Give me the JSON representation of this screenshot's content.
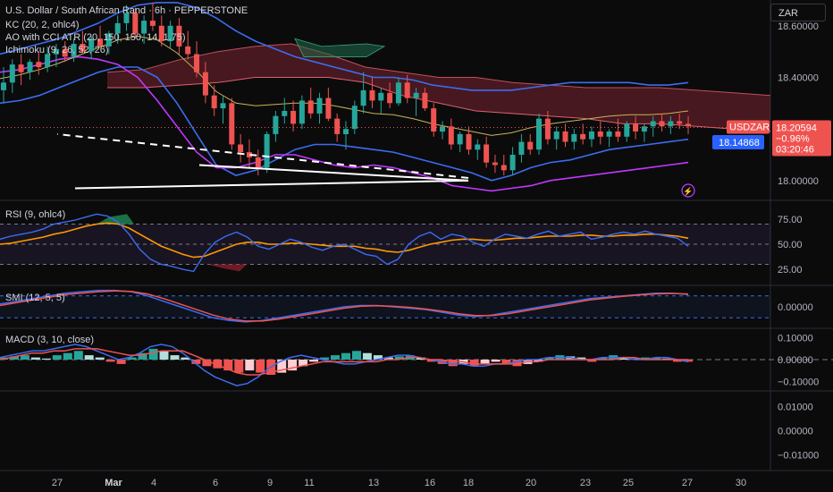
{
  "header": {
    "title": "U.S. Dollar / South African Rand · 6h · PEPPERSTONE",
    "currency_button": "ZAR"
  },
  "indicators": {
    "kc": "KC (20, 2, ohlc4)",
    "ao_cci": "AO with CCI ATR (20, 150, 150, 14, 1.75)",
    "ichimoku": "Ichimoku (9, 26, 52, 26)",
    "rsi": "RSI (9, ohlc4)",
    "smi": "SMI (12, 5, 5)",
    "macd": "MACD (3, 10, close)"
  },
  "price_tags": {
    "symbol": "USDZAR",
    "last": "18.20594",
    "change": "−0.96%",
    "countdown": "03:20:46",
    "blue": "18.14868"
  },
  "colors": {
    "up": "#26a69a",
    "down": "#ef5350",
    "kc": "#3b6df0",
    "ichimoku_cloud": "#7a2530",
    "rsi": "#ff9800",
    "magenta": "#c038ff",
    "bg": "#0b0b0c"
  },
  "chart_data": [
    {
      "type": "candlestick",
      "title": "U.S. Dollar / South African Rand · 6h · PEPPERSTONE",
      "ylim": [
        17.93,
        18.7
      ],
      "y_ticks": [
        "18.60000",
        "18.40000",
        "18.20000",
        "18.00000"
      ],
      "x_ticks": [
        "27",
        "Mar",
        "4",
        "6",
        "9",
        "11",
        "13",
        "16",
        "18",
        "20",
        "23",
        "25",
        "27",
        "30"
      ],
      "last_price": 18.20594,
      "blue_price": 18.14868,
      "grid": false,
      "candles": [
        [
          18.35,
          18.44,
          18.3,
          18.38
        ],
        [
          18.38,
          18.47,
          18.34,
          18.45
        ],
        [
          18.45,
          18.49,
          18.37,
          18.42
        ],
        [
          18.42,
          18.47,
          18.39,
          18.46
        ],
        [
          18.46,
          18.5,
          18.41,
          18.44
        ],
        [
          18.44,
          18.52,
          18.42,
          18.49
        ],
        [
          18.49,
          18.53,
          18.44,
          18.51
        ],
        [
          18.51,
          18.54,
          18.46,
          18.48
        ],
        [
          18.48,
          18.55,
          18.46,
          18.53
        ],
        [
          18.53,
          18.58,
          18.49,
          18.5
        ],
        [
          18.5,
          18.56,
          18.47,
          18.55
        ],
        [
          18.55,
          18.6,
          18.52,
          18.52
        ],
        [
          18.52,
          18.58,
          18.49,
          18.57
        ],
        [
          18.57,
          18.64,
          18.53,
          18.61
        ],
        [
          18.61,
          18.68,
          18.58,
          18.65
        ],
        [
          18.65,
          18.67,
          18.55,
          18.57
        ],
        [
          18.57,
          18.64,
          18.53,
          18.62
        ],
        [
          18.62,
          18.69,
          18.58,
          18.6
        ],
        [
          18.6,
          18.64,
          18.52,
          18.54
        ],
        [
          18.54,
          18.62,
          18.51,
          18.6
        ],
        [
          18.6,
          18.63,
          18.49,
          18.52
        ],
        [
          18.52,
          18.58,
          18.47,
          18.49
        ],
        [
          18.49,
          18.54,
          18.4,
          18.42
        ],
        [
          18.42,
          18.46,
          18.3,
          18.33
        ],
        [
          18.33,
          18.37,
          18.25,
          18.28
        ],
        [
          18.28,
          18.33,
          18.22,
          18.3
        ],
        [
          18.3,
          18.32,
          18.12,
          18.14
        ],
        [
          18.14,
          18.18,
          18.07,
          18.11
        ],
        [
          18.11,
          18.16,
          18.05,
          18.09
        ],
        [
          18.09,
          18.12,
          18.02,
          18.05
        ],
        [
          18.05,
          18.19,
          18.03,
          18.18
        ],
        [
          18.18,
          18.27,
          18.15,
          18.25
        ],
        [
          18.25,
          18.32,
          18.22,
          18.27
        ],
        [
          18.27,
          18.31,
          18.19,
          18.22
        ],
        [
          18.22,
          18.33,
          18.2,
          18.31
        ],
        [
          18.31,
          18.36,
          18.24,
          18.26
        ],
        [
          18.26,
          18.34,
          18.22,
          18.32
        ],
        [
          18.32,
          18.36,
          18.23,
          18.24
        ],
        [
          18.24,
          18.26,
          18.15,
          18.18
        ],
        [
          18.18,
          18.23,
          18.12,
          18.2
        ],
        [
          18.2,
          18.31,
          18.18,
          18.29
        ],
        [
          18.29,
          18.42,
          18.26,
          18.35
        ],
        [
          18.35,
          18.4,
          18.28,
          18.31
        ],
        [
          18.31,
          18.36,
          18.26,
          18.34
        ],
        [
          18.34,
          18.38,
          18.28,
          18.3
        ],
        [
          18.3,
          18.4,
          18.29,
          18.38
        ],
        [
          18.38,
          18.41,
          18.3,
          18.32
        ],
        [
          18.32,
          18.36,
          18.25,
          18.34
        ],
        [
          18.34,
          18.36,
          18.27,
          18.28
        ],
        [
          18.28,
          18.3,
          18.17,
          18.19
        ],
        [
          18.19,
          18.23,
          18.16,
          18.21
        ],
        [
          18.21,
          18.24,
          18.12,
          18.14
        ],
        [
          18.14,
          18.19,
          18.11,
          18.18
        ],
        [
          18.18,
          18.21,
          18.1,
          18.12
        ],
        [
          18.12,
          18.16,
          18.08,
          18.14
        ],
        [
          18.14,
          18.17,
          18.05,
          18.07
        ],
        [
          18.07,
          18.1,
          18.03,
          18.06
        ],
        [
          18.06,
          18.1,
          18.02,
          18.04
        ],
        [
          18.04,
          18.13,
          18.02,
          18.1
        ],
        [
          18.1,
          18.18,
          18.07,
          18.15
        ],
        [
          18.15,
          18.18,
          18.1,
          18.12
        ],
        [
          18.12,
          18.26,
          18.1,
          18.24
        ],
        [
          18.24,
          18.27,
          18.14,
          18.16
        ],
        [
          18.16,
          18.21,
          18.12,
          18.19
        ],
        [
          18.19,
          18.22,
          18.13,
          18.15
        ],
        [
          18.15,
          18.2,
          18.12,
          18.18
        ],
        [
          18.18,
          18.22,
          18.14,
          18.16
        ],
        [
          18.16,
          18.21,
          18.13,
          18.19
        ],
        [
          18.19,
          18.23,
          18.14,
          18.17
        ],
        [
          18.17,
          18.2,
          18.13,
          18.19
        ],
        [
          18.19,
          18.24,
          18.15,
          18.17
        ],
        [
          18.17,
          18.23,
          18.15,
          18.22
        ],
        [
          18.22,
          18.25,
          18.16,
          18.19
        ],
        [
          18.19,
          18.22,
          18.15,
          18.21
        ],
        [
          18.21,
          18.25,
          18.17,
          18.23
        ],
        [
          18.23,
          18.26,
          18.19,
          18.21
        ],
        [
          18.21,
          18.25,
          18.18,
          18.23
        ],
        [
          18.23,
          18.26,
          18.2,
          18.22
        ],
        [
          18.22,
          18.25,
          18.18,
          18.21
        ]
      ],
      "kc_upper": [
        18.49,
        18.51,
        18.53,
        18.55,
        18.58,
        18.61,
        18.65,
        18.68,
        18.69,
        18.69,
        18.67,
        18.63,
        18.58,
        18.54,
        18.51,
        18.48,
        18.46,
        18.44,
        18.42,
        18.4,
        18.4,
        18.39,
        18.37,
        18.36,
        18.35,
        18.35,
        18.35,
        18.36,
        18.37,
        18.38,
        18.38,
        18.38,
        18.38,
        18.37,
        18.37,
        18.38
      ],
      "kc_lower": [
        18.3,
        18.31,
        18.33,
        18.36,
        18.39,
        18.42,
        18.44,
        18.44,
        18.4,
        18.3,
        18.18,
        18.06,
        18.02,
        18.04,
        18.08,
        18.12,
        18.14,
        18.14,
        18.13,
        18.12,
        18.11,
        18.09,
        18.07,
        18.05,
        18.03,
        18.0,
        18.02,
        18.05,
        18.07,
        18.08,
        18.1,
        18.12,
        18.13,
        18.14,
        18.15,
        18.16
      ],
      "magenta": [
        18.42,
        18.43,
        18.45,
        18.47,
        18.48,
        18.47,
        18.45,
        18.4,
        18.31,
        18.21,
        18.11,
        18.05,
        18.05,
        18.07,
        18.1,
        18.1,
        18.08,
        18.06,
        18.05,
        18.06,
        18.05,
        18.03,
        18.01,
        17.98,
        17.97,
        17.96,
        17.97,
        17.98,
        18.0,
        18.01,
        18.02,
        18.03,
        18.04,
        18.05,
        18.06,
        18.07
      ],
      "trendlines": [
        {
          "from": [
            "6",
            18.06
          ],
          "to": [
            "18",
            18.0
          ],
          "style": "solid"
        },
        {
          "from": [
            "18",
            18.0
          ],
          "to": [
            "27",
            17.97
          ],
          "style": "solid"
        },
        {
          "from": [
            "18",
            18.01
          ],
          "to": [
            "27",
            18.18
          ],
          "style": "dashed"
        }
      ]
    },
    {
      "type": "line",
      "title": "RSI (9, ohlc4)",
      "y_ticks": [
        "75.00",
        "50.00",
        "25.00"
      ],
      "ylim": [
        10,
        90
      ],
      "series": [
        {
          "name": "RSI",
          "values": [
            55,
            58,
            60,
            62,
            65,
            70,
            72,
            74,
            77,
            80,
            78,
            72,
            60,
            45,
            35,
            30,
            28,
            25,
            23,
            40,
            52,
            58,
            62,
            57,
            48,
            45,
            50,
            55,
            52,
            47,
            44,
            48,
            50,
            45,
            40,
            38,
            30,
            35,
            50,
            58,
            62,
            55,
            60,
            58,
            52,
            48,
            55,
            60,
            58,
            56,
            60,
            63,
            58,
            60,
            62,
            55,
            57,
            60,
            62,
            60,
            63,
            60,
            58,
            56,
            48
          ]
        },
        {
          "name": "Signal",
          "values": [
            50,
            51,
            53,
            55,
            57,
            60,
            62,
            65,
            68,
            70,
            71,
            70,
            66,
            60,
            54,
            48,
            44,
            40,
            37,
            38,
            42,
            46,
            50,
            52,
            52,
            50,
            50,
            51,
            51,
            50,
            49,
            48,
            48,
            48,
            46,
            45,
            43,
            42,
            44,
            47,
            50,
            52,
            54,
            55,
            55,
            54,
            54,
            55,
            56,
            56,
            57,
            58,
            58,
            58,
            59,
            59,
            58,
            58,
            59,
            59,
            60,
            60,
            59,
            58,
            56
          ]
        }
      ]
    },
    {
      "type": "line",
      "title": "SMI (12, 5, 5)",
      "y_ticks": [
        "0.00000"
      ],
      "series": [
        {
          "name": "SMI",
          "values": [
            0.1,
            0.2,
            0.3,
            0.4,
            0.5,
            0.55,
            0.6,
            0.6,
            0.55,
            0.4,
            0.2,
            0.0,
            -0.2,
            -0.4,
            -0.5,
            -0.55,
            -0.5,
            -0.4,
            -0.3,
            -0.2,
            -0.1,
            0.0,
            0.05,
            0.05,
            0.0,
            -0.05,
            -0.1,
            -0.2,
            -0.3,
            -0.35,
            -0.3,
            -0.2,
            -0.1,
            0.0,
            0.1,
            0.2,
            0.3,
            0.35,
            0.4,
            0.45,
            0.5,
            0.5,
            0.45
          ]
        },
        {
          "name": "Signal",
          "values": [
            0.05,
            0.15,
            0.25,
            0.35,
            0.45,
            0.5,
            0.55,
            0.58,
            0.56,
            0.47,
            0.3,
            0.1,
            -0.1,
            -0.3,
            -0.45,
            -0.52,
            -0.52,
            -0.45,
            -0.35,
            -0.25,
            -0.15,
            -0.05,
            0.02,
            0.04,
            0.02,
            -0.02,
            -0.08,
            -0.16,
            -0.25,
            -0.32,
            -0.32,
            -0.25,
            -0.15,
            -0.05,
            0.05,
            0.15,
            0.25,
            0.32,
            0.38,
            0.43,
            0.47,
            0.49,
            0.47
          ]
        }
      ]
    },
    {
      "type": "bar",
      "title": "MACD (3, 10, close)",
      "y_ticks": [
        "0.10000",
        "0.00000",
        "−0.10000"
      ],
      "histogram": [
        0.01,
        0.015,
        0.02,
        0.01,
        0.005,
        0.02,
        0.03,
        0.04,
        0.02,
        0.01,
        -0.01,
        -0.02,
        0.01,
        0.03,
        0.05,
        0.04,
        0.02,
        0.01,
        -0.02,
        -0.03,
        -0.04,
        -0.05,
        -0.06,
        -0.05,
        -0.06,
        -0.07,
        -0.06,
        -0.05,
        -0.03,
        -0.01,
        0.01,
        0.02,
        0.03,
        0.04,
        0.03,
        0.02,
        0.01,
        0.015,
        0.02,
        0.01,
        -0.01,
        -0.02,
        -0.03,
        -0.02,
        -0.03,
        -0.02,
        -0.01,
        -0.02,
        -0.03,
        -0.02,
        -0.01,
        0.01,
        0.02,
        0.015,
        0.01,
        -0.01,
        0.01,
        0.02,
        0.01,
        0.005,
        0.01,
        0.01,
        0.005,
        -0.01,
        -0.01
      ],
      "macd": [
        0.01,
        0.02,
        0.03,
        0.04,
        0.04,
        0.05,
        0.06,
        0.07,
        0.06,
        0.04,
        0.02,
        0.0,
        0.01,
        0.03,
        0.06,
        0.07,
        0.06,
        0.03,
        -0.01,
        -0.05,
        -0.08,
        -0.1,
        -0.12,
        -0.11,
        -0.08,
        -0.04,
        -0.01,
        0.01,
        0.02,
        0.01,
        0.0,
        -0.01,
        -0.02,
        -0.02,
        -0.01,
        0.0,
        0.01,
        0.02,
        0.02,
        0.01,
        0.0,
        -0.01,
        -0.02,
        -0.02,
        -0.03,
        -0.03,
        -0.02,
        -0.02,
        -0.01,
        0.0,
        0.0,
        0.01,
        0.01,
        0.01,
        0.0,
        0.0,
        0.01,
        0.01,
        0.01,
        0.0,
        0.0,
        0.01,
        0.01,
        0.0,
        -0.01
      ],
      "signal": [
        0.0,
        0.01,
        0.02,
        0.03,
        0.03,
        0.04,
        0.04,
        0.05,
        0.05,
        0.05,
        0.04,
        0.03,
        0.02,
        0.02,
        0.03,
        0.04,
        0.04,
        0.04,
        0.02,
        0.0,
        -0.02,
        -0.04,
        -0.06,
        -0.07,
        -0.07,
        -0.06,
        -0.05,
        -0.04,
        -0.03,
        -0.02,
        -0.01,
        -0.01,
        -0.01,
        -0.01,
        -0.01,
        -0.01,
        0.0,
        0.0,
        0.01,
        0.01,
        0.0,
        0.0,
        -0.01,
        -0.01,
        -0.02,
        -0.02,
        -0.02,
        -0.02,
        -0.02,
        -0.01,
        -0.01,
        0.0,
        0.0,
        0.0,
        0.0,
        0.0,
        0.0,
        0.0,
        0.01,
        0.01,
        0.0,
        0.0,
        0.0,
        0.0,
        0.0
      ]
    },
    {
      "type": "line",
      "title": "",
      "y_ticks": [
        "0.01000",
        "0.00000",
        "−0.01000"
      ],
      "series": []
    }
  ]
}
